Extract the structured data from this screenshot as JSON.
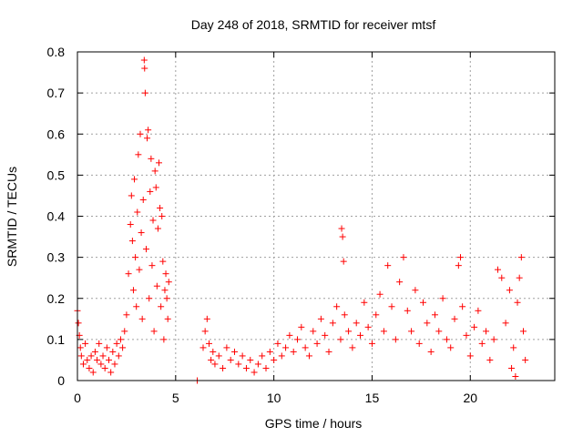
{
  "chart_data": {
    "type": "scatter",
    "title": "Day 248 of 2018, SRMTID for receiver mtsf",
    "xlabel": "GPS time / hours",
    "ylabel": "SRMTID / TECUs",
    "xlim": [
      0,
      24.3
    ],
    "ylim": [
      0,
      0.8
    ],
    "xticks": [
      "0",
      "5",
      "10",
      "15",
      "20"
    ],
    "yticks": [
      "0",
      "0.1",
      "0.2",
      "0.3",
      "0.4",
      "0.5",
      "0.6",
      "0.7",
      "0.8"
    ],
    "marker": "plus",
    "grid": true,
    "series": [
      {
        "name": "SRMTID",
        "color": "#ff0000",
        "points": [
          [
            0.0,
            0.17
          ],
          [
            0.05,
            0.14
          ],
          [
            0.1,
            0.11
          ],
          [
            0.15,
            0.08
          ],
          [
            0.2,
            0.06
          ],
          [
            0.3,
            0.04
          ],
          [
            0.4,
            0.09
          ],
          [
            0.5,
            0.05
          ],
          [
            0.6,
            0.03
          ],
          [
            0.7,
            0.06
          ],
          [
            0.8,
            0.02
          ],
          [
            0.9,
            0.07
          ],
          [
            1.0,
            0.05
          ],
          [
            1.1,
            0.09
          ],
          [
            1.2,
            0.04
          ],
          [
            1.3,
            0.06
          ],
          [
            1.4,
            0.03
          ],
          [
            1.5,
            0.08
          ],
          [
            1.6,
            0.05
          ],
          [
            1.7,
            0.02
          ],
          [
            1.8,
            0.07
          ],
          [
            1.9,
            0.04
          ],
          [
            2.0,
            0.09
          ],
          [
            2.1,
            0.06
          ],
          [
            2.2,
            0.1
          ],
          [
            2.3,
            0.08
          ],
          [
            2.4,
            0.12
          ],
          [
            2.5,
            0.16
          ],
          [
            2.6,
            0.26
          ],
          [
            2.7,
            0.38
          ],
          [
            2.75,
            0.45
          ],
          [
            2.8,
            0.34
          ],
          [
            2.85,
            0.22
          ],
          [
            2.9,
            0.49
          ],
          [
            2.95,
            0.3
          ],
          [
            3.0,
            0.18
          ],
          [
            3.05,
            0.41
          ],
          [
            3.1,
            0.55
          ],
          [
            3.15,
            0.27
          ],
          [
            3.2,
            0.6
          ],
          [
            3.25,
            0.36
          ],
          [
            3.3,
            0.15
          ],
          [
            3.35,
            0.44
          ],
          [
            3.4,
            0.78
          ],
          [
            3.42,
            0.76
          ],
          [
            3.45,
            0.7
          ],
          [
            3.5,
            0.32
          ],
          [
            3.55,
            0.59
          ],
          [
            3.6,
            0.61
          ],
          [
            3.65,
            0.2
          ],
          [
            3.7,
            0.46
          ],
          [
            3.75,
            0.54
          ],
          [
            3.8,
            0.28
          ],
          [
            3.85,
            0.39
          ],
          [
            3.9,
            0.12
          ],
          [
            3.95,
            0.51
          ],
          [
            4.0,
            0.47
          ],
          [
            4.05,
            0.23
          ],
          [
            4.1,
            0.37
          ],
          [
            4.15,
            0.53
          ],
          [
            4.2,
            0.42
          ],
          [
            4.25,
            0.18
          ],
          [
            4.3,
            0.4
          ],
          [
            4.35,
            0.29
          ],
          [
            4.4,
            0.1
          ],
          [
            4.45,
            0.22
          ],
          [
            4.5,
            0.26
          ],
          [
            4.55,
            0.2
          ],
          [
            4.6,
            0.15
          ],
          [
            4.65,
            0.24
          ],
          [
            6.1,
            0.0
          ],
          [
            6.4,
            0.08
          ],
          [
            6.5,
            0.12
          ],
          [
            6.6,
            0.15
          ],
          [
            6.7,
            0.09
          ],
          [
            6.8,
            0.05
          ],
          [
            6.9,
            0.07
          ],
          [
            7.0,
            0.04
          ],
          [
            7.2,
            0.06
          ],
          [
            7.4,
            0.03
          ],
          [
            7.6,
            0.08
          ],
          [
            7.8,
            0.05
          ],
          [
            8.0,
            0.07
          ],
          [
            8.2,
            0.04
          ],
          [
            8.4,
            0.06
          ],
          [
            8.6,
            0.03
          ],
          [
            8.8,
            0.05
          ],
          [
            9.0,
            0.02
          ],
          [
            9.2,
            0.04
          ],
          [
            9.4,
            0.06
          ],
          [
            9.6,
            0.03
          ],
          [
            9.8,
            0.07
          ],
          [
            10.0,
            0.05
          ],
          [
            10.2,
            0.09
          ],
          [
            10.4,
            0.06
          ],
          [
            10.6,
            0.08
          ],
          [
            10.8,
            0.11
          ],
          [
            11.0,
            0.07
          ],
          [
            11.2,
            0.1
          ],
          [
            11.4,
            0.13
          ],
          [
            11.6,
            0.08
          ],
          [
            11.8,
            0.06
          ],
          [
            12.0,
            0.12
          ],
          [
            12.2,
            0.09
          ],
          [
            12.4,
            0.15
          ],
          [
            12.6,
            0.11
          ],
          [
            12.8,
            0.07
          ],
          [
            13.0,
            0.14
          ],
          [
            13.2,
            0.18
          ],
          [
            13.4,
            0.1
          ],
          [
            13.45,
            0.37
          ],
          [
            13.5,
            0.35
          ],
          [
            13.55,
            0.29
          ],
          [
            13.6,
            0.16
          ],
          [
            13.8,
            0.12
          ],
          [
            14.0,
            0.08
          ],
          [
            14.2,
            0.14
          ],
          [
            14.4,
            0.11
          ],
          [
            14.6,
            0.19
          ],
          [
            14.8,
            0.13
          ],
          [
            15.0,
            0.09
          ],
          [
            15.2,
            0.16
          ],
          [
            15.4,
            0.21
          ],
          [
            15.6,
            0.12
          ],
          [
            15.8,
            0.28
          ],
          [
            16.0,
            0.18
          ],
          [
            16.2,
            0.1
          ],
          [
            16.4,
            0.24
          ],
          [
            16.6,
            0.3
          ],
          [
            16.8,
            0.17
          ],
          [
            17.0,
            0.12
          ],
          [
            17.2,
            0.22
          ],
          [
            17.4,
            0.09
          ],
          [
            17.6,
            0.19
          ],
          [
            17.8,
            0.14
          ],
          [
            18.0,
            0.07
          ],
          [
            18.2,
            0.16
          ],
          [
            18.4,
            0.12
          ],
          [
            18.6,
            0.2
          ],
          [
            18.8,
            0.1
          ],
          [
            19.0,
            0.08
          ],
          [
            19.2,
            0.15
          ],
          [
            19.4,
            0.28
          ],
          [
            19.5,
            0.3
          ],
          [
            19.6,
            0.18
          ],
          [
            19.8,
            0.11
          ],
          [
            20.0,
            0.06
          ],
          [
            20.2,
            0.13
          ],
          [
            20.4,
            0.17
          ],
          [
            20.6,
            0.09
          ],
          [
            20.8,
            0.12
          ],
          [
            21.0,
            0.05
          ],
          [
            21.2,
            0.1
          ],
          [
            21.4,
            0.27
          ],
          [
            21.6,
            0.25
          ],
          [
            21.8,
            0.14
          ],
          [
            22.0,
            0.22
          ],
          [
            22.1,
            0.03
          ],
          [
            22.2,
            0.08
          ],
          [
            22.3,
            0.01
          ],
          [
            22.4,
            0.19
          ],
          [
            22.5,
            0.25
          ],
          [
            22.6,
            0.3
          ],
          [
            22.7,
            0.12
          ],
          [
            22.8,
            0.05
          ]
        ]
      }
    ]
  }
}
